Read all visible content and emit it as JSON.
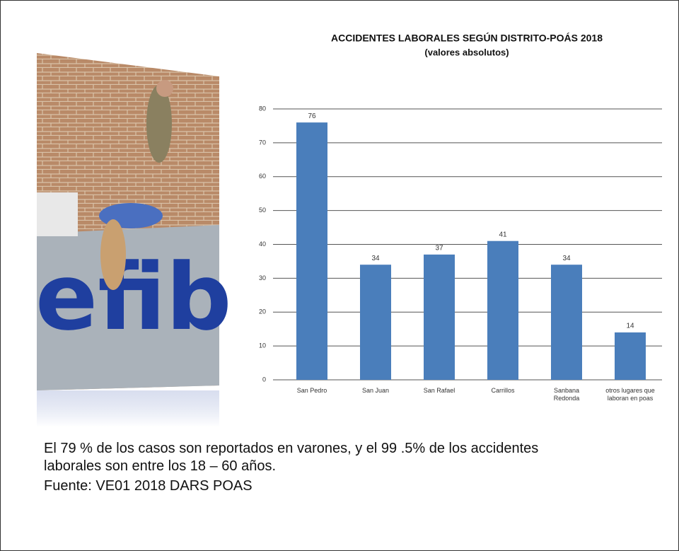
{
  "chart_data": {
    "type": "bar",
    "title": "ACCIDENTES LABORALES  SEGÚN DISTRITO-POÁS 2018",
    "subtitle": "(valores absolutos)",
    "categories": [
      "San Pedro",
      "San Juan",
      "San Rafael",
      "Carrillos",
      "Sanbana Redonda",
      "otros lugares que laboran en poas"
    ],
    "values": [
      76,
      34,
      37,
      41,
      34,
      14
    ],
    "color": "#4a7ebb",
    "ylim": [
      0,
      80
    ],
    "yticks": [
      0,
      10,
      20,
      30,
      40,
      50,
      60,
      70,
      80
    ],
    "grid": true,
    "annotation": "El 79 % de los casos son reportados en varones, y el 99 .5% de los accidentes laborales son entre los 18 – 60 años.",
    "source": "Fuente: VE01 2018 DARS POAS"
  }
}
